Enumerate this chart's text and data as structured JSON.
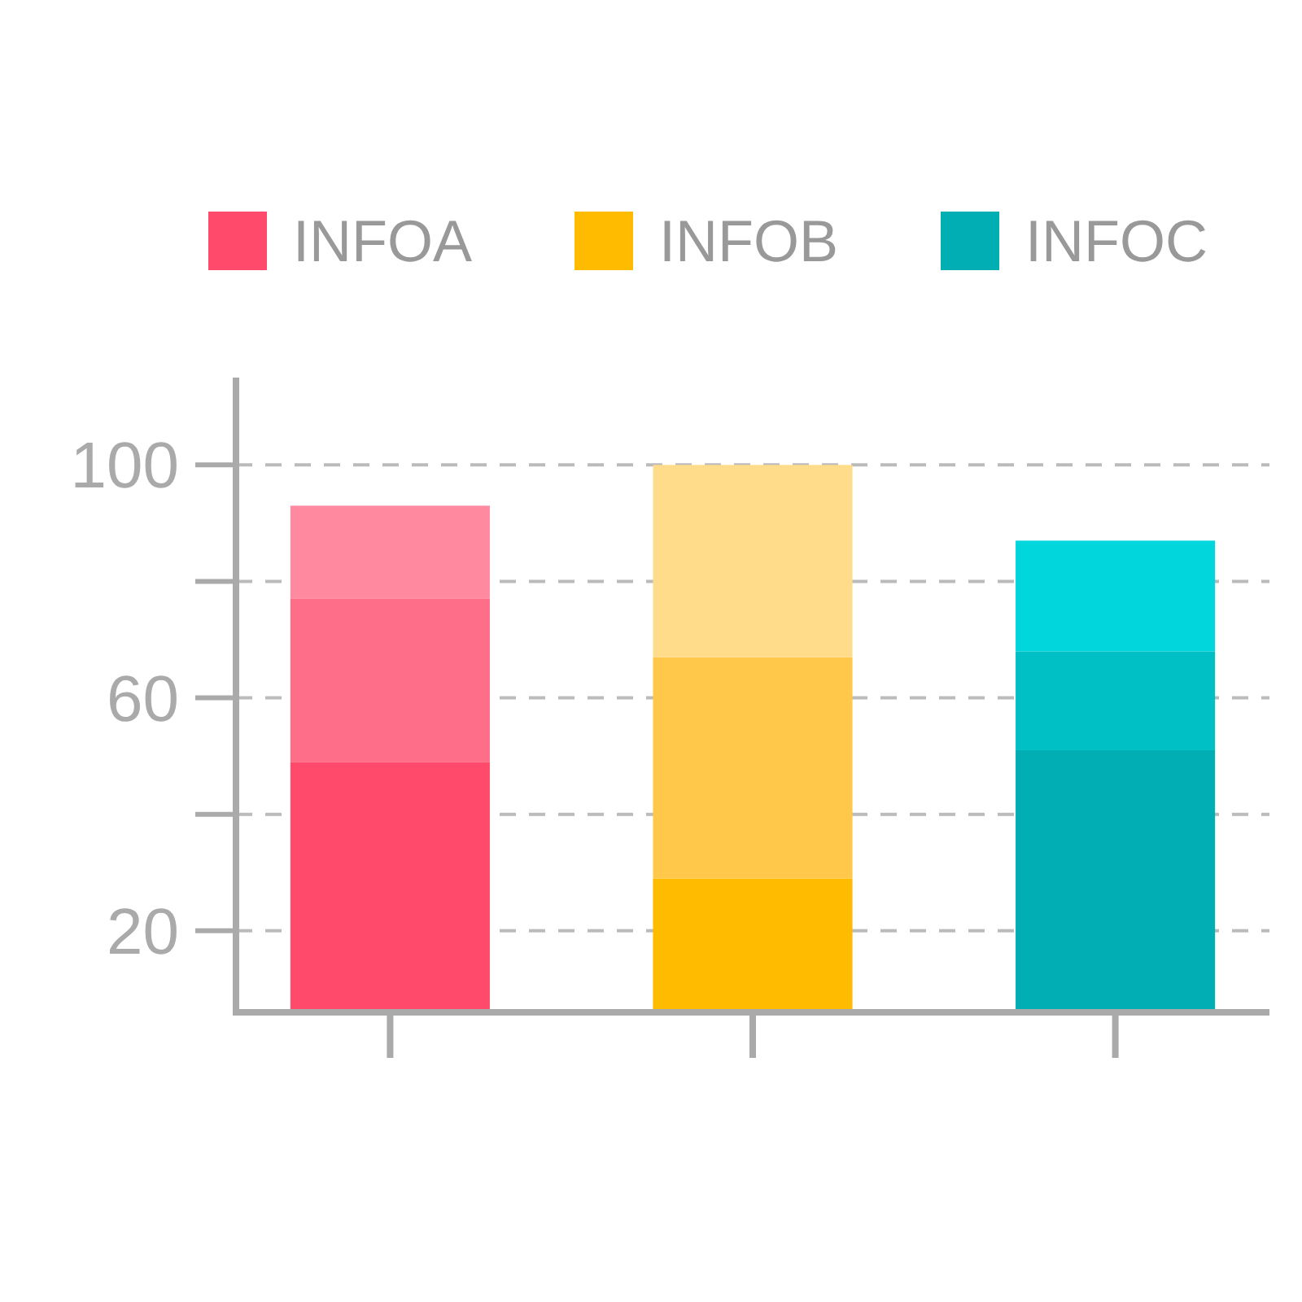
{
  "chart_data": {
    "type": "bar",
    "categories": [
      null,
      null,
      null
    ],
    "stacked": true,
    "series": [
      {
        "name": "INFOA",
        "color": "#ff4a6b",
        "values": [
          49,
          null,
          null
        ]
      },
      {
        "name": "INFOB",
        "color": "#ffbb00",
        "values": [
          null,
          29,
          null
        ]
      },
      {
        "name": "INFOC",
        "color": "#00aeb3",
        "values": [
          null,
          null,
          51
        ]
      },
      {
        "colors": [
          "#ff6e88",
          "#ffc84a",
          "#00c0c6"
        ],
        "values": [
          28,
          38,
          17
        ]
      },
      {
        "colors": [
          "#ff8aa0",
          "#ffdc8a",
          "#00d6dc"
        ],
        "values": [
          16,
          33,
          19
        ]
      }
    ],
    "ylim": [
      6,
      115
    ],
    "yticks": [
      20,
      {
        "value": 40,
        "label": null
      },
      60,
      {
        "value": 80,
        "label": null
      },
      100
    ],
    "grid": "y",
    "legend": "top"
  }
}
